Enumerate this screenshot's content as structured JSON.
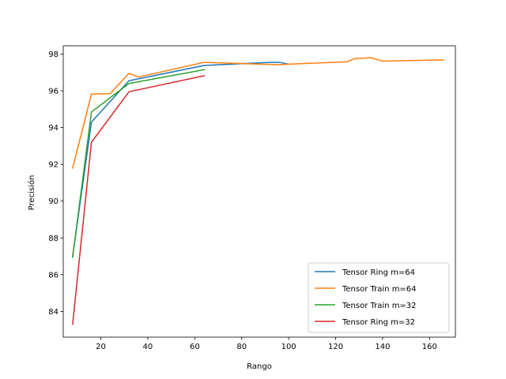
{
  "chart_data": {
    "type": "line",
    "title": "",
    "xlabel": "Rango",
    "ylabel": "Precisión",
    "xlim": [
      4,
      171
    ],
    "ylim": [
      82.6,
      98.45
    ],
    "xticks": [
      20,
      40,
      60,
      80,
      100,
      120,
      140,
      160
    ],
    "yticks": [
      84,
      86,
      88,
      90,
      92,
      94,
      96,
      98
    ],
    "grid": false,
    "legend_position": "lower-right",
    "series": [
      {
        "name": "Tensor Ring m=64",
        "color": "#1f77b4",
        "x": [
          8,
          16,
          32,
          64,
          92,
          96,
          100
        ],
        "y": [
          87.0,
          94.3,
          96.55,
          97.38,
          97.55,
          97.55,
          97.45
        ]
      },
      {
        "name": "Tensor Train m=64",
        "color": "#ff7f0e",
        "x": [
          8,
          16,
          24,
          32,
          36,
          64,
          96,
          100,
          125,
          128,
          135,
          140,
          166
        ],
        "y": [
          91.8,
          95.82,
          95.85,
          96.95,
          96.75,
          97.55,
          97.42,
          97.45,
          97.58,
          97.75,
          97.8,
          97.62,
          97.68
        ]
      },
      {
        "name": "Tensor Train m=32",
        "color": "#2ca02c",
        "x": [
          8,
          16,
          32,
          64
        ],
        "y": [
          86.95,
          94.85,
          96.4,
          97.15
        ]
      },
      {
        "name": "Tensor Ring m=32",
        "color": "#d62728",
        "x": [
          8,
          16,
          32,
          64
        ],
        "y": [
          83.3,
          93.2,
          95.95,
          96.82
        ]
      }
    ]
  }
}
